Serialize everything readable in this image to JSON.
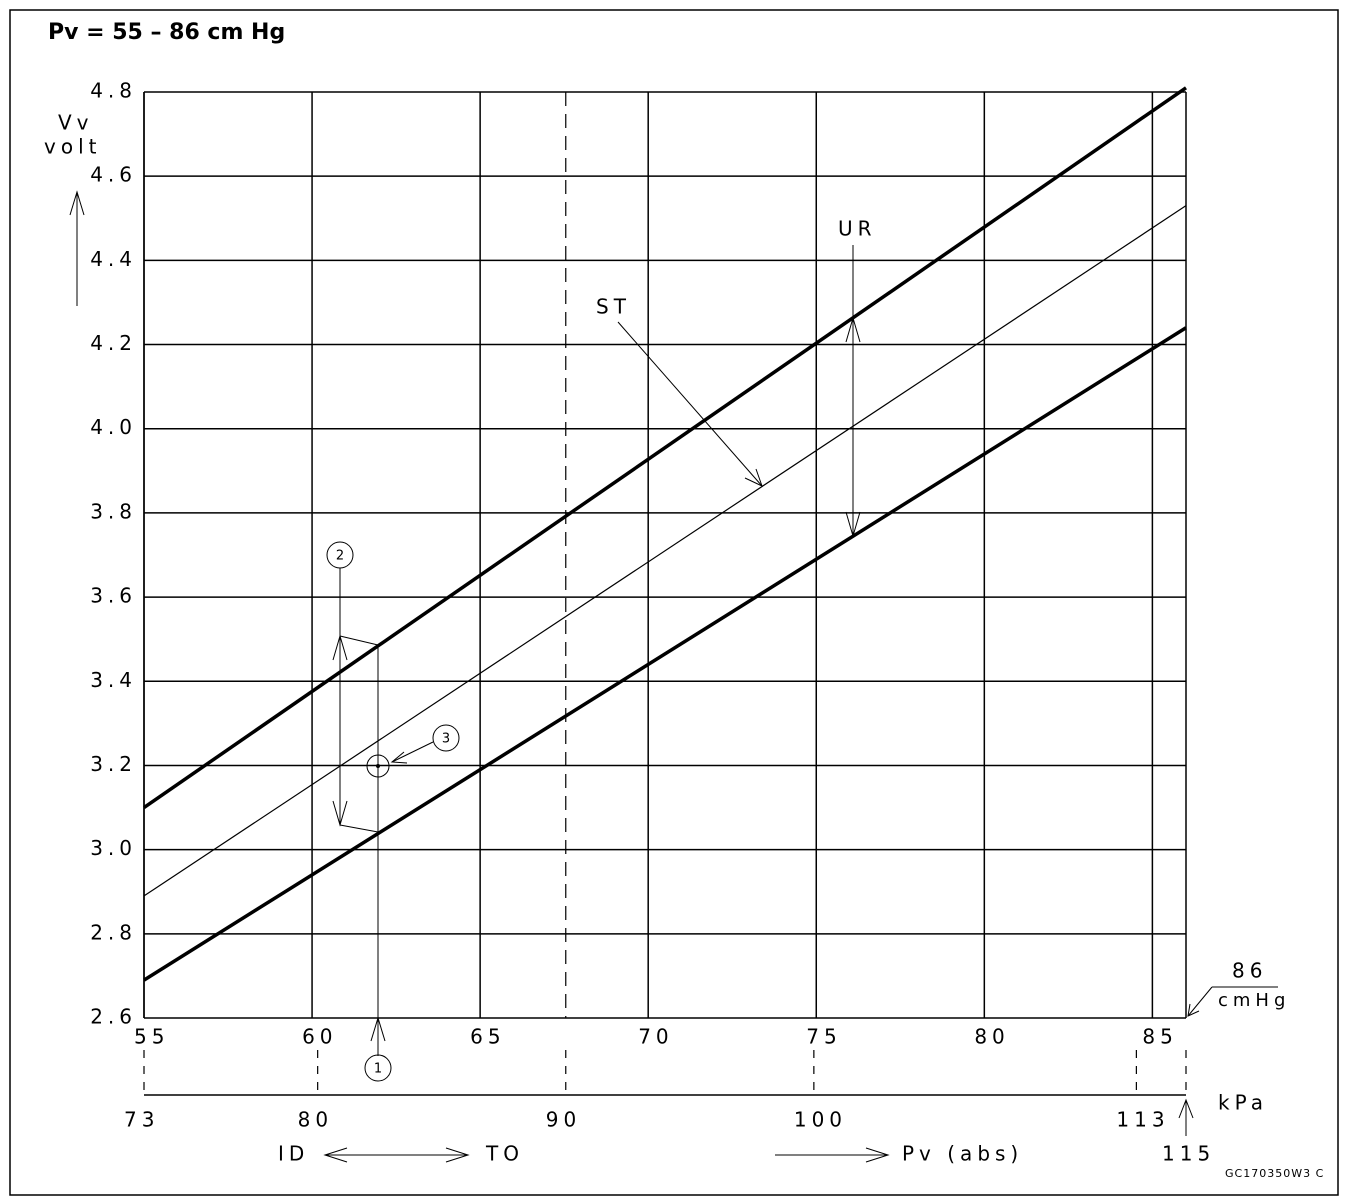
{
  "chart_data": {
    "type": "line",
    "title": "Pv = 55 – 86 cm Hg",
    "y_label": [
      "Vv",
      "volt"
    ],
    "x": [
      55,
      86
    ],
    "series": [
      {
        "name": "UR upper",
        "color": "#000",
        "values": [
          3.1,
          4.81
        ]
      },
      {
        "name": "ST",
        "color": "#000",
        "values": [
          2.89,
          4.53
        ]
      },
      {
        "name": "UR lower",
        "color": "#000",
        "values": [
          2.69,
          4.24
        ]
      }
    ],
    "xlim": [
      55,
      86
    ],
    "xticks": [
      55,
      60,
      65,
      70,
      75,
      80,
      85
    ],
    "ylim": [
      2.6,
      4.8
    ],
    "yticks": [
      2.6,
      2.8,
      3.0,
      3.2,
      3.4,
      3.6,
      3.8,
      4.0,
      4.2,
      4.4,
      4.6,
      4.8
    ],
    "x2lim": [
      73,
      115
    ],
    "x2ticks": [
      73,
      80,
      90,
      100,
      113,
      115
    ],
    "x2_label": "kPa",
    "x_unit": [
      "86",
      "cmHg"
    ],
    "annotations": {
      "st": "ST",
      "ur": "UR",
      "c1": "1",
      "c2": "2",
      "c3": "3",
      "id": "ID",
      "to": "TO",
      "pv": "Pv (abs)",
      "code": "GC170350W3 C"
    },
    "grid": true
  }
}
